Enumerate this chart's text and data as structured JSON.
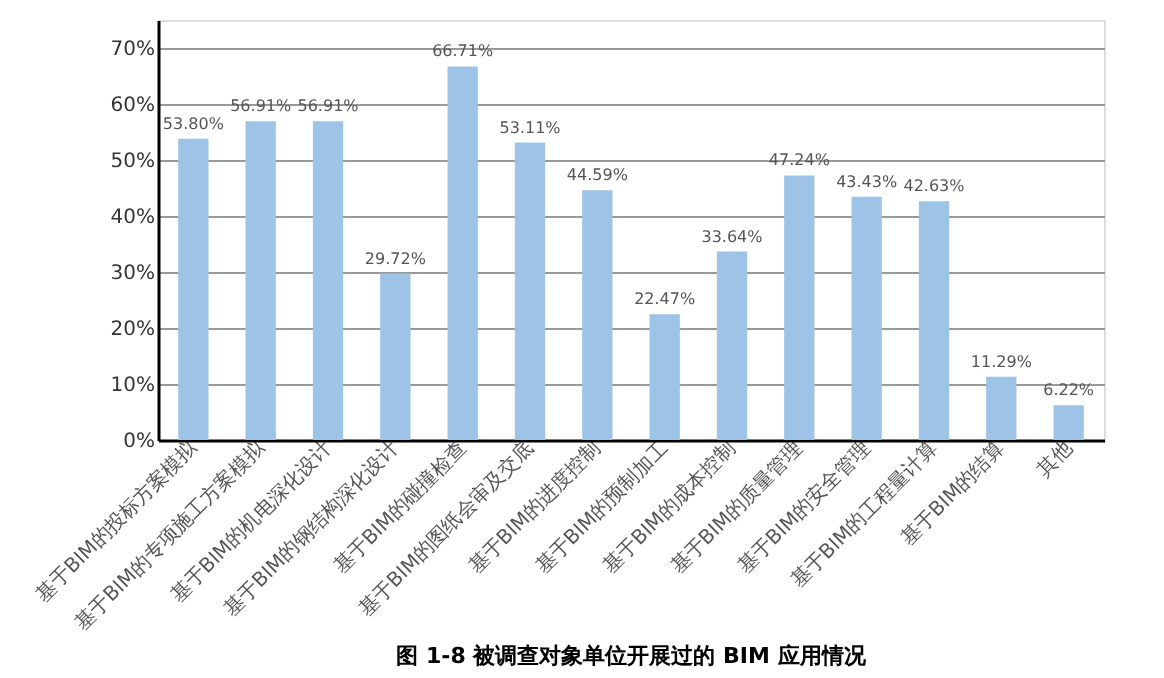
{
  "chart_data": {
    "type": "bar",
    "title": "图 1-8  被调查对象单位开展过的 BIM 应用情况",
    "categories": [
      "基于BIM的投标方案模拟",
      "基于BIM的专项施工方案模拟",
      "基于BIM的机电深化设计",
      "基于BIM的钢结构深化设计",
      "基于BIM的碰撞检查",
      "基于BIM的图纸会审及交底",
      "基于BIM的进度控制",
      "基于BIM的预制加工",
      "基于BIM的成本控制",
      "基于BIM的质量管理",
      "基于BIM的安全管理",
      "基于BIM的工程量计算",
      "基于BIM的结算",
      "其他"
    ],
    "values": [
      53.8,
      56.91,
      56.91,
      29.72,
      66.71,
      53.11,
      44.59,
      22.47,
      33.64,
      47.24,
      43.43,
      42.63,
      11.29,
      6.22
    ],
    "value_labels": [
      "53.80%",
      "56.91%",
      "56.91%",
      "29.72%",
      "66.71%",
      "53.11%",
      "44.59%",
      "22.47%",
      "33.64%",
      "47.24%",
      "43.43%",
      "42.63%",
      "11.29%",
      "6.22%"
    ],
    "color": "#9dc3e6",
    "ylim": [
      0,
      75
    ],
    "yticks": [
      {
        "value": 0,
        "label": "0%"
      },
      {
        "value": 10,
        "label": "10%"
      },
      {
        "value": 20,
        "label": "20%"
      },
      {
        "value": 30,
        "label": "30%"
      },
      {
        "value": 40,
        "label": "40%"
      },
      {
        "value": 50,
        "label": "50%"
      },
      {
        "value": 60,
        "label": "60%"
      },
      {
        "value": 70,
        "label": "70%"
      }
    ],
    "grid": "y"
  }
}
